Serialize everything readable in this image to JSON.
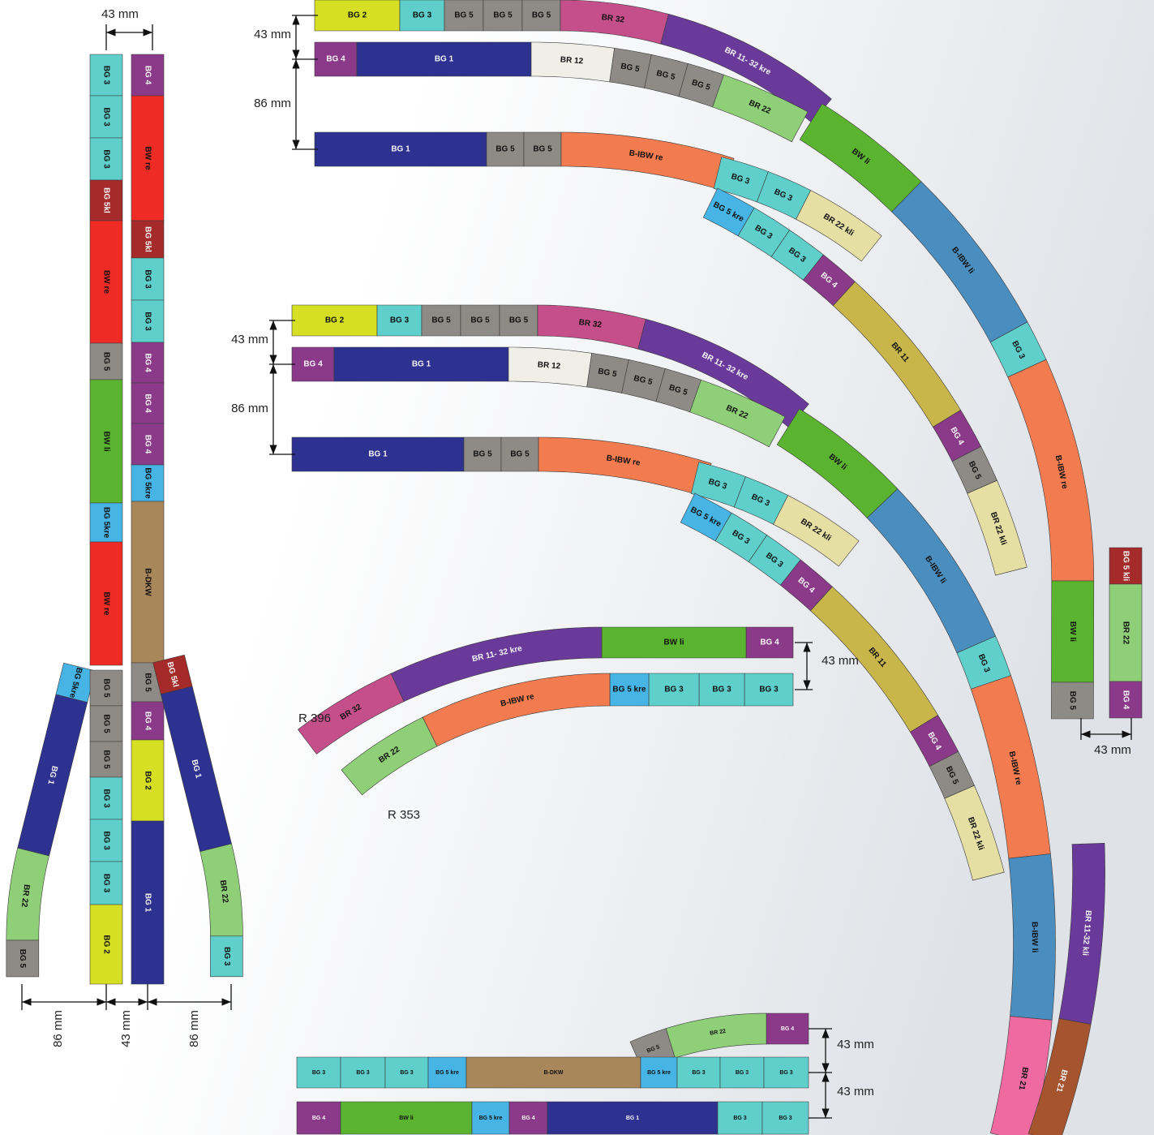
{
  "diagram_left": {
    "tracks": [
      [
        "BG 3",
        "BG 3",
        "BG 3",
        "BG 5kl",
        "BW re",
        "BG 5",
        "BW li",
        "BG 5kre",
        "BW re"
      ],
      [
        "BG 5kre",
        "BG 1",
        "BR 22",
        "BG 5"
      ],
      [
        "BG 5",
        "BG 5",
        "BG 5",
        "BG 3",
        "BG 3",
        "BG 3",
        "BG 2"
      ],
      [
        "BG 4",
        "BW re",
        "BG 5kl",
        "BG 3",
        "BG 3",
        "BG 4",
        "BG 4",
        "BG 4",
        "BG 5kre",
        "B-DKW",
        "BG 5",
        "BG 4",
        "BG 2",
        "BG 1"
      ],
      [
        "BG 5kl",
        "BG 1",
        "BR 22",
        "BG 3"
      ]
    ],
    "dimensions": [
      "43 mm",
      "86 mm",
      "43 mm",
      "86 mm"
    ]
  },
  "diagram_1": {
    "tracks": [
      [
        "BG 2",
        "BG 3",
        "BG 5",
        "BG 5",
        "BG 5",
        "BR 32",
        "BR 11- 32 kre"
      ],
      [
        "BG 4",
        "BG 1",
        "BR 12",
        "BG 5",
        "BG 5",
        "BG 5",
        "BR 22"
      ],
      [
        "BG 1",
        "BG 5",
        "BG 5",
        "B-IBW re"
      ],
      [
        "BG 3",
        "BG 3",
        "BR 22 kli"
      ],
      [
        "BG 5 kre",
        "BG 3",
        "BG 3",
        "BG 4",
        "BR 11",
        "BG 4",
        "BG 5",
        "BR 22 kli"
      ],
      [
        "BW li",
        "B-IBW li",
        "BG 3",
        "B-IBW re",
        "BW li",
        "BG 5"
      ],
      [
        "BG 5 kli",
        "BR 22",
        "BG 4"
      ]
    ],
    "dimensions": [
      "43 mm",
      "86 mm",
      "43 mm"
    ]
  },
  "diagram_2": {
    "tracks": [
      [
        "BG 2",
        "BG 3",
        "BG 5",
        "BG 5",
        "BG 5",
        "BR 32",
        "BR 11- 32 kre"
      ],
      [
        "BG 4",
        "BG 1",
        "BR 12",
        "BG 5",
        "BG 5",
        "BG 5",
        "BR 22"
      ],
      [
        "BG 1",
        "BG 5",
        "BG 5",
        "B-IBW re"
      ],
      [
        "BG 3",
        "BG 3",
        "BR 22 kli"
      ],
      [
        "BG 5 kre",
        "BG 3",
        "BG 3",
        "BG 4",
        "BR 11",
        "BG 4",
        "BG 5",
        "BR 22 kli"
      ],
      [
        "BW li",
        "B-IBW li",
        "BG 3",
        "B-IBW re",
        "B-IBW li",
        "BR 21"
      ],
      [
        "BR 11-32 kli",
        "BR 21"
      ]
    ],
    "dimensions": [
      "43 mm",
      "86 mm"
    ]
  },
  "diagram_3": {
    "tracks": [
      [
        "BG 4",
        "BW li",
        "BR 11- 32 kre",
        "BR 32"
      ],
      [
        "BG 3",
        "BG 3",
        "BG 3",
        "BG 5 kre",
        "B-IBW re",
        "BR 22"
      ]
    ],
    "dimensions": [
      "43 mm"
    ],
    "radii": [
      "R 396",
      "R 353"
    ]
  },
  "diagram_4": {
    "tracks": [
      [
        "BG 4",
        "BR 22",
        "BG 5"
      ],
      [
        "BG 3",
        "BG 3",
        "BG 3",
        "BG 5 kre",
        "B-DKW",
        "BG 5 kre",
        "BG 3",
        "BG 3",
        "BG 3"
      ],
      [
        "BG 4",
        "BW li",
        "BG 5 kre",
        "BG 4",
        "BG 1",
        "BG 3",
        "BG 3"
      ]
    ],
    "dimensions": [
      "43 mm",
      "43 mm"
    ]
  }
}
